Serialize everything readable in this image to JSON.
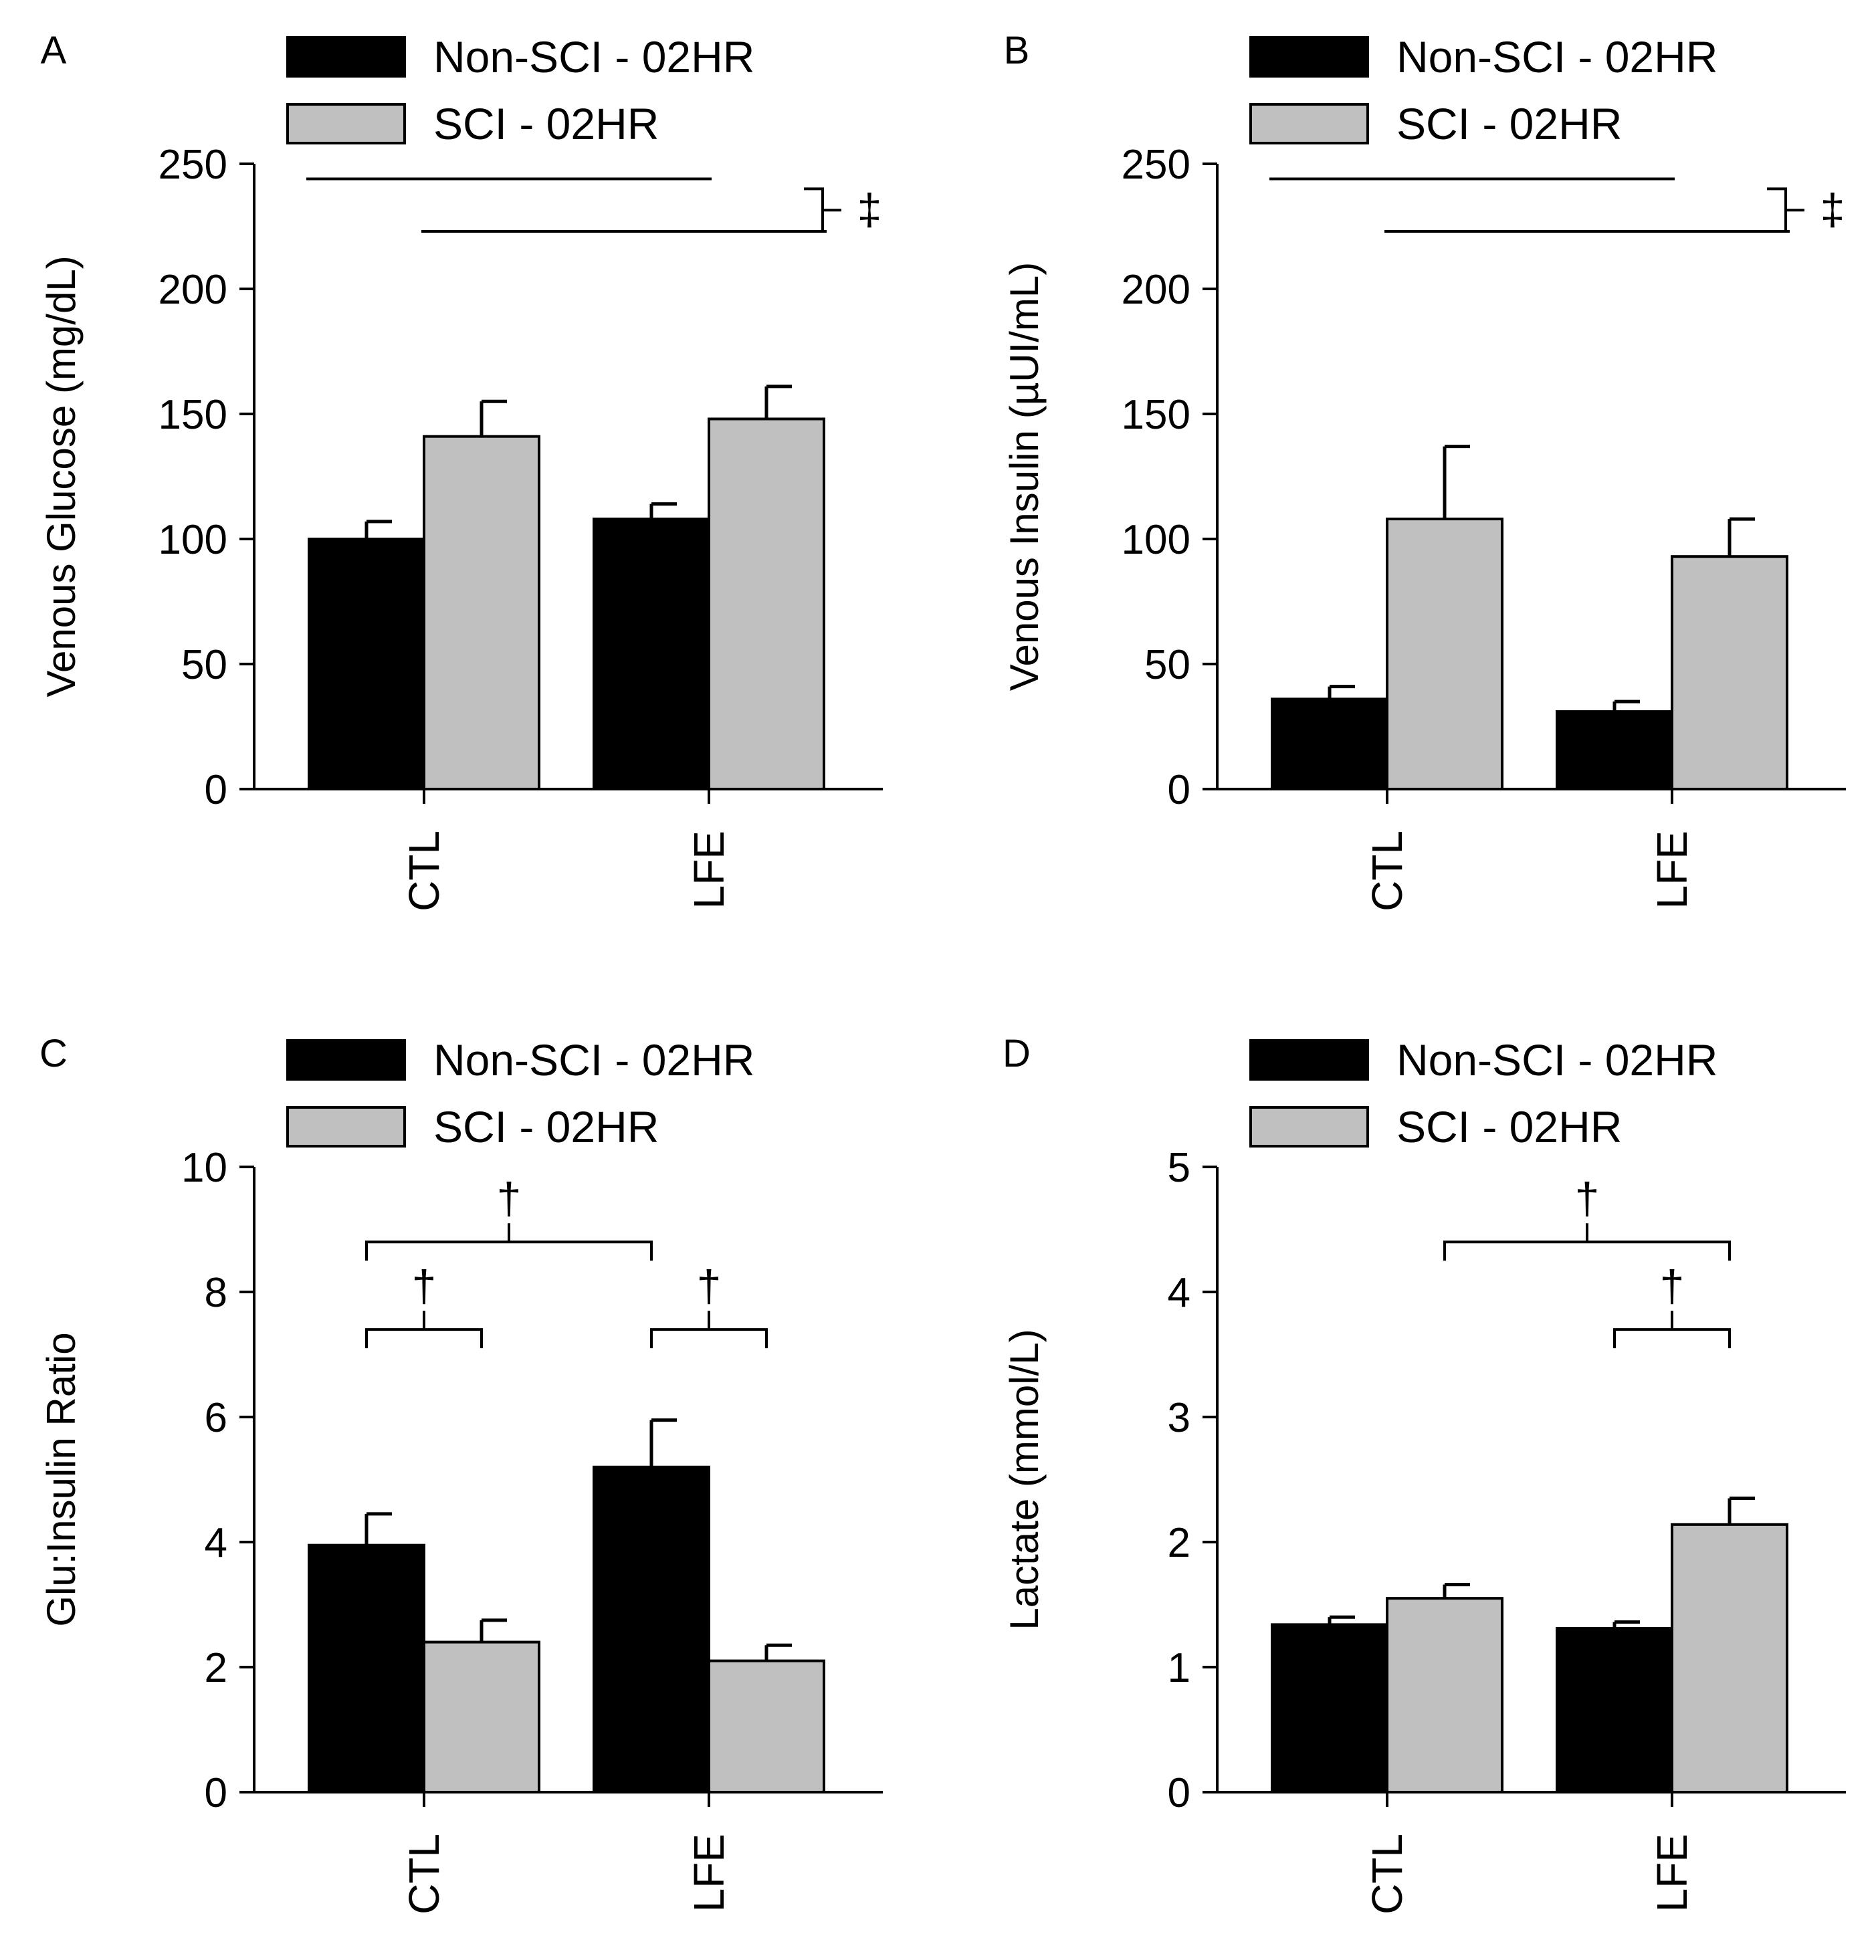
{
  "colors": {
    "non_sci": "#000000",
    "sci": "#c0c0c0",
    "axis": "#000000",
    "background": "#ffffff"
  },
  "chart_data": [
    {
      "type": "bar",
      "panel_label": "A",
      "ylabel": "Venous Glucose (mg/dL)",
      "ylim": [
        0,
        250
      ],
      "yticks": [
        0,
        50,
        100,
        150,
        200,
        250
      ],
      "categories": [
        "CTL",
        "LFE"
      ],
      "series": [
        {
          "name": "Non-SCI - 02HR",
          "values": [
            100,
            108
          ],
          "errors": [
            7,
            6
          ]
        },
        {
          "name": "SCI - 02HR",
          "values": [
            141,
            148
          ],
          "errors": [
            14,
            13
          ]
        }
      ],
      "annotations": [
        {
          "kind": "line",
          "from": [
            0,
            0
          ],
          "to": [
            1,
            0
          ],
          "level": 244
        },
        {
          "kind": "line",
          "from": [
            0,
            1
          ],
          "to": [
            1,
            1
          ],
          "level": 223
        },
        {
          "kind": "bracket-right",
          "range": [
            223,
            240
          ],
          "label": "‡"
        }
      ]
    },
    {
      "type": "bar",
      "panel_label": "B",
      "ylabel": "Venous Insulin (µUI/mL)",
      "ylim": [
        0,
        250
      ],
      "yticks": [
        0,
        50,
        100,
        150,
        200,
        250
      ],
      "categories": [
        "CTL",
        "LFE"
      ],
      "series": [
        {
          "name": "Non-SCI - 02HR",
          "values": [
            36,
            31
          ],
          "errors": [
            5,
            4
          ]
        },
        {
          "name": "SCI - 02HR",
          "values": [
            108,
            93
          ],
          "errors": [
            29,
            15
          ]
        }
      ],
      "annotations": [
        {
          "kind": "line",
          "from": [
            0,
            0
          ],
          "to": [
            1,
            0
          ],
          "level": 244
        },
        {
          "kind": "line",
          "from": [
            0,
            1
          ],
          "to": [
            1,
            1
          ],
          "level": 223
        },
        {
          "kind": "bracket-right",
          "range": [
            223,
            240
          ],
          "label": "‡"
        }
      ]
    },
    {
      "type": "bar",
      "panel_label": "C",
      "ylabel": "Glu:Insulin Ratio",
      "ylim": [
        0,
        10
      ],
      "yticks": [
        0,
        2,
        4,
        6,
        8,
        10
      ],
      "categories": [
        "CTL",
        "LFE"
      ],
      "series": [
        {
          "name": "Non-SCI - 02HR",
          "values": [
            3.95,
            5.2
          ],
          "errors": [
            0.5,
            0.75
          ]
        },
        {
          "name": "SCI - 02HR",
          "values": [
            2.4,
            2.1
          ],
          "errors": [
            0.35,
            0.25
          ]
        }
      ],
      "annotations": [
        {
          "kind": "bracket-top",
          "from": [
            0,
            0
          ],
          "to": [
            1,
            0
          ],
          "level": 8.8,
          "label": "†"
        },
        {
          "kind": "bracket-top",
          "from": [
            0,
            0
          ],
          "to": [
            0,
            1
          ],
          "level": 7.4,
          "label": "†"
        },
        {
          "kind": "bracket-top",
          "from": [
            1,
            0
          ],
          "to": [
            1,
            1
          ],
          "level": 7.4,
          "label": "†"
        }
      ]
    },
    {
      "type": "bar",
      "panel_label": "D",
      "ylabel": "Lactate (mmol/L)",
      "ylim": [
        0,
        5
      ],
      "yticks": [
        0,
        1,
        2,
        3,
        4,
        5
      ],
      "categories": [
        "CTL",
        "LFE"
      ],
      "series": [
        {
          "name": "Non-SCI - 02HR",
          "values": [
            1.34,
            1.31
          ],
          "errors": [
            0.06,
            0.05
          ]
        },
        {
          "name": "SCI - 02HR",
          "values": [
            1.55,
            2.14
          ],
          "errors": [
            0.11,
            0.21
          ]
        }
      ],
      "annotations": [
        {
          "kind": "bracket-top",
          "from": [
            0,
            1
          ],
          "to": [
            1,
            1
          ],
          "level": 4.4,
          "label": "†"
        },
        {
          "kind": "bracket-top",
          "from": [
            1,
            0
          ],
          "to": [
            1,
            1
          ],
          "level": 3.7,
          "label": "†"
        }
      ]
    }
  ]
}
